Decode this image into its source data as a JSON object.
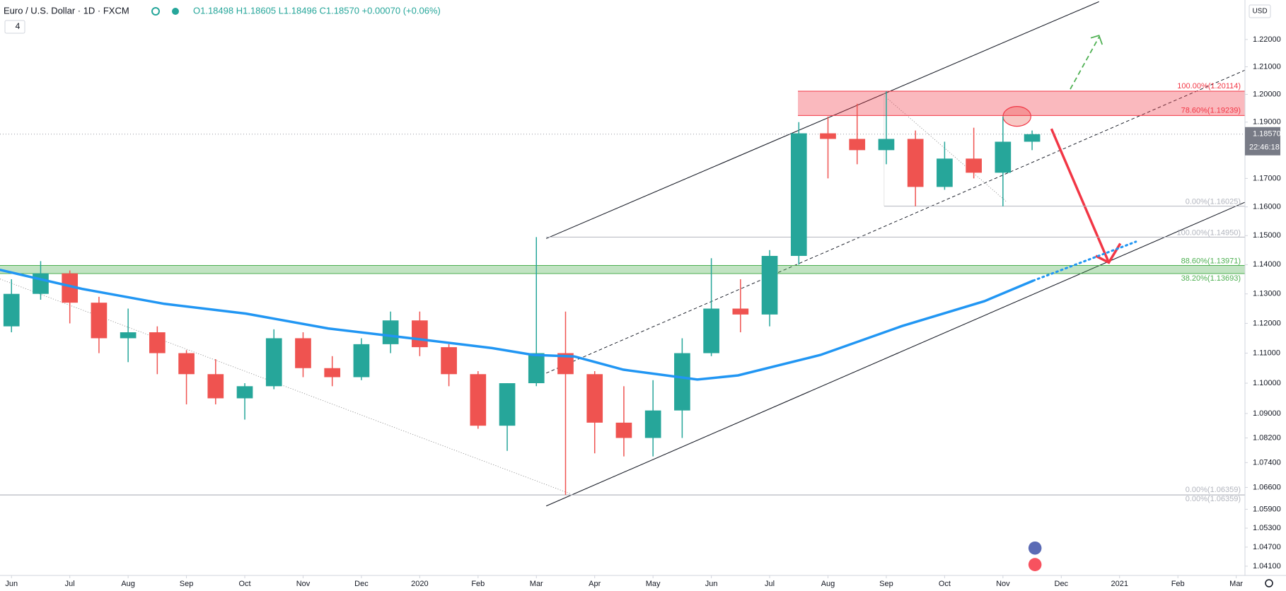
{
  "header": {
    "symbol": "Euro / U.S. Dollar · 1D · FXCM",
    "quote": "O1.18498 H1.18605 L1.18496 C1.18570 +0.00070 (+0.06%)",
    "interval_badge": "4",
    "currency": "USD"
  },
  "chart_data": {
    "type": "candlestick",
    "log_scale": true,
    "grid": false,
    "up_color": "#26a69a",
    "down_color": "#ef5350",
    "xlim": [
      -0.197,
      21.15
    ],
    "ylim": [
      1.0381,
      1.2346
    ],
    "xticks": [
      {
        "value": 0,
        "label": "Jun"
      },
      {
        "value": 1,
        "label": "Jul"
      },
      {
        "value": 2,
        "label": "Aug"
      },
      {
        "value": 3,
        "label": "Sep"
      },
      {
        "value": 4,
        "label": "Oct"
      },
      {
        "value": 5,
        "label": "Nov"
      },
      {
        "value": 6,
        "label": "Dec"
      },
      {
        "value": 7,
        "label": "2020"
      },
      {
        "value": 8,
        "label": "Feb"
      },
      {
        "value": 9,
        "label": "Mar"
      },
      {
        "value": 10,
        "label": "Apr"
      },
      {
        "value": 11,
        "label": "May"
      },
      {
        "value": 12,
        "label": "Jun"
      },
      {
        "value": 13,
        "label": "Jul"
      },
      {
        "value": 14,
        "label": "Aug"
      },
      {
        "value": 15,
        "label": "Sep"
      },
      {
        "value": 16,
        "label": "Oct"
      },
      {
        "value": 17,
        "label": "Nov"
      },
      {
        "value": 18,
        "label": "Dec"
      },
      {
        "value": 19,
        "label": "2021"
      },
      {
        "value": 20,
        "label": "Feb"
      },
      {
        "value": 21,
        "label": "Mar"
      }
    ],
    "yticks": [
      {
        "value": 1.22,
        "label": "1.22000"
      },
      {
        "value": 1.21,
        "label": "1.21000"
      },
      {
        "value": 1.2,
        "label": "1.20000"
      },
      {
        "value": 1.19,
        "label": "1.19000"
      },
      {
        "value": 1.17,
        "label": "1.17000"
      },
      {
        "value": 1.16,
        "label": "1.16000"
      },
      {
        "value": 1.15,
        "label": "1.15000"
      },
      {
        "value": 1.14,
        "label": "1.14000"
      },
      {
        "value": 1.13,
        "label": "1.13000"
      },
      {
        "value": 1.12,
        "label": "1.12000"
      },
      {
        "value": 1.11,
        "label": "1.11000"
      },
      {
        "value": 1.1,
        "label": "1.10000"
      },
      {
        "value": 1.09,
        "label": "1.09000"
      },
      {
        "value": 1.082,
        "label": "1.08200"
      },
      {
        "value": 1.074,
        "label": "1.07400"
      },
      {
        "value": 1.066,
        "label": "1.06600"
      },
      {
        "value": 1.059,
        "label": "1.05900"
      },
      {
        "value": 1.053,
        "label": "1.05300"
      },
      {
        "value": 1.047,
        "label": "1.04700"
      },
      {
        "value": 1.041,
        "label": "1.04100"
      }
    ],
    "ohlc": {
      "x": [
        0,
        0.5,
        1,
        1.5,
        2,
        2.5,
        3,
        3.5,
        4,
        4.5,
        5,
        5.5,
        6,
        6.5,
        7,
        7.5,
        8,
        8.5,
        9,
        9.5,
        10,
        10.5,
        11,
        11.5,
        12,
        12.5,
        13,
        13.5,
        14,
        14.5,
        15,
        15.5,
        16,
        16.5,
        17,
        17.5
      ],
      "open": [
        1.119,
        1.13,
        1.137,
        1.127,
        1.115,
        1.117,
        1.11,
        1.103,
        1.095,
        1.099,
        1.115,
        1.105,
        1.102,
        1.113,
        1.121,
        1.112,
        1.103,
        1.086,
        1.1,
        1.11,
        1.103,
        1.087,
        1.082,
        1.091,
        1.11,
        1.125,
        1.123,
        1.143,
        1.186,
        1.184,
        1.18,
        1.184,
        1.167,
        1.177,
        1.172,
        1.183
      ],
      "high": [
        1.135,
        1.1412,
        1.138,
        1.129,
        1.125,
        1.119,
        1.111,
        1.108,
        1.1,
        1.118,
        1.117,
        1.109,
        1.115,
        1.124,
        1.124,
        1.113,
        1.104,
        1.1,
        1.1495,
        1.124,
        1.104,
        1.099,
        1.101,
        1.115,
        1.1422,
        1.135,
        1.145,
        1.19,
        1.192,
        1.1966,
        1.2011,
        1.187,
        1.183,
        1.188,
        1.192,
        1.187
      ],
      "low": [
        1.117,
        1.128,
        1.12,
        1.11,
        1.107,
        1.103,
        1.093,
        1.093,
        1.088,
        1.098,
        1.102,
        1.099,
        1.101,
        1.11,
        1.109,
        1.099,
        1.085,
        1.0778,
        1.099,
        1.0636,
        1.077,
        1.076,
        1.076,
        1.082,
        1.109,
        1.117,
        1.119,
        1.14,
        1.17,
        1.175,
        1.175,
        1.1602,
        1.166,
        1.17,
        1.1602,
        1.18
      ],
      "close": [
        1.13,
        1.137,
        1.127,
        1.115,
        1.117,
        1.11,
        1.103,
        1.095,
        1.099,
        1.115,
        1.105,
        1.102,
        1.113,
        1.121,
        1.112,
        1.103,
        1.086,
        1.1,
        1.11,
        1.103,
        1.087,
        1.082,
        1.091,
        1.11,
        1.125,
        1.123,
        1.143,
        1.186,
        1.184,
        1.18,
        1.184,
        1.167,
        1.177,
        1.172,
        1.183,
        1.1857
      ]
    },
    "ma": {
      "color": "#2196f3",
      "x": [
        -0.2,
        1.21,
        2.62,
        4.02,
        5.43,
        6.84,
        8.24,
        8.95,
        9.65,
        10.49,
        11.76,
        12.46,
        13.87,
        15.27,
        16.68,
        17.52
      ],
      "values": [
        1.1382,
        1.1317,
        1.1266,
        1.1233,
        1.1183,
        1.115,
        1.1117,
        1.1094,
        1.1089,
        1.1045,
        1.1012,
        1.1026,
        1.1094,
        1.1191,
        1.1275,
        1.1345
      ]
    },
    "ma_projection": {
      "x": [
        17.52,
        19.28
      ],
      "values": [
        1.1345,
        1.1479
      ]
    },
    "last_price": {
      "value": 1.1857,
      "label": "1.18570"
    },
    "countdown": "22:46:18",
    "levels": [
      {
        "value": 1.20114,
        "label": "100.00%(1.20114)",
        "color": "#f23645"
      },
      {
        "value": 1.19239,
        "label": "78.60%(1.19239)",
        "color": "#f23645"
      },
      {
        "value": 1.16025,
        "label": "0.00%(1.16025)",
        "color": "#b2b5be"
      },
      {
        "value": 1.1495,
        "label": "100.00%(1.14950)",
        "color": "#b2b5be"
      },
      {
        "value": 1.13971,
        "label": "88.60%(1.13971)",
        "color": "#4caf50"
      },
      {
        "value": 1.13693,
        "label": "38.20%(1.13693)",
        "color": "#4caf50"
      },
      {
        "value": 1.06359,
        "label": "0.00%(1.06359)",
        "color": "#b2b5be"
      },
      {
        "value": 1.06359,
        "label": "0.00%(1.06359)",
        "color": "#b2b5be"
      }
    ]
  }
}
